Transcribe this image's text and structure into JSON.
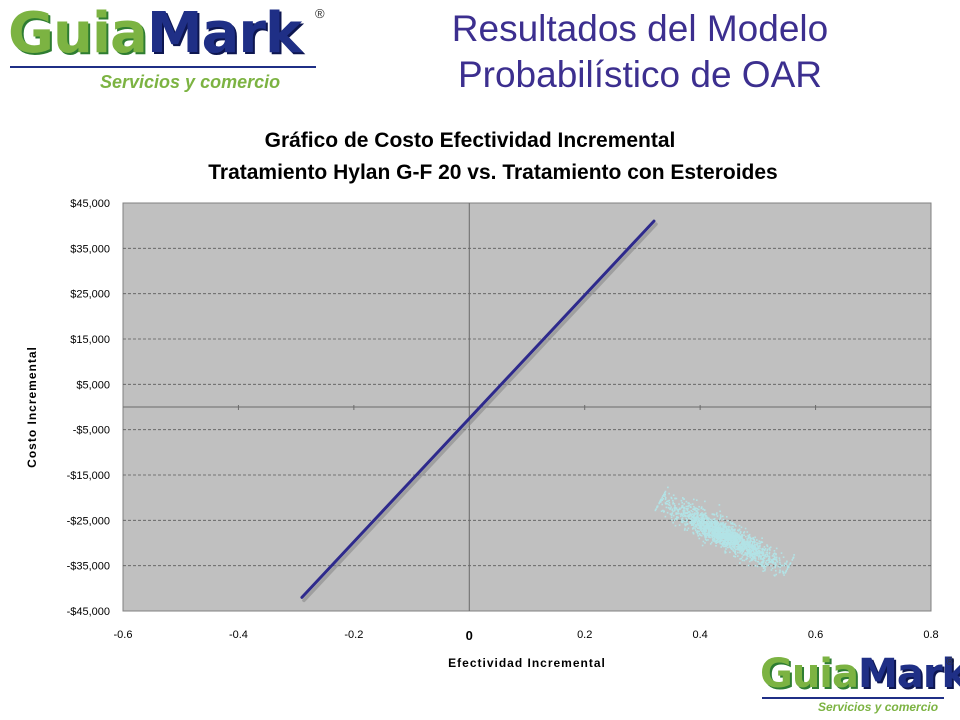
{
  "header": {
    "logo_part1": "Guia",
    "logo_part2": "Mark",
    "logo_registered": "®",
    "logo_tagline": "Servicios y comercio",
    "title_line1": "Resultados del Modelo",
    "title_line2": "Probabilístico de OAR"
  },
  "footer_logo": {
    "part1": "Guia",
    "part2": "Mark",
    "registered": "®",
    "tagline": "Servicios y comercio"
  },
  "colors": {
    "title": "#3c2f8f",
    "logo_green": "#7cb342",
    "logo_blue": "#1f2f86",
    "plot_background": "#c0c0c0",
    "line": "#2e2a8c",
    "scatter": "#b2e3e6"
  },
  "chart_data": {
    "type": "scatter",
    "title_line1": "Gráfico de Costo Efectividad Incremental",
    "title_line2": "Tratamiento Hylan G-F 20 vs. Tratamiento con Esteroides",
    "xlabel": "Efectividad Incremental",
    "ylabel": "Costo Incremental",
    "xlim": [
      -0.6,
      0.8
    ],
    "ylim": [
      -45000,
      45000
    ],
    "x_ticks": [
      "-0.6",
      "-0.4",
      "-0.2",
      "0",
      "0.2",
      "0.4",
      "0.6",
      "0.8"
    ],
    "y_ticks": [
      "$45,000",
      "$35,000",
      "$25,000",
      "$15,000",
      "$5,000",
      "-$5,000",
      "-$15,000",
      "-$25,000",
      "-$35,000",
      "-$45,000"
    ],
    "grid": true,
    "line": {
      "x": [
        -0.29,
        0.32
      ],
      "y": [
        -42000,
        41000
      ]
    },
    "point_cloud": {
      "main_axis_start": [
        0.33,
        -20500
      ],
      "main_axis_end": [
        0.55,
        -35500
      ],
      "half_width": 2400,
      "points": 1800,
      "x_range": [
        0.32,
        0.56
      ],
      "y_range": [
        -38000,
        -17000
      ]
    }
  }
}
